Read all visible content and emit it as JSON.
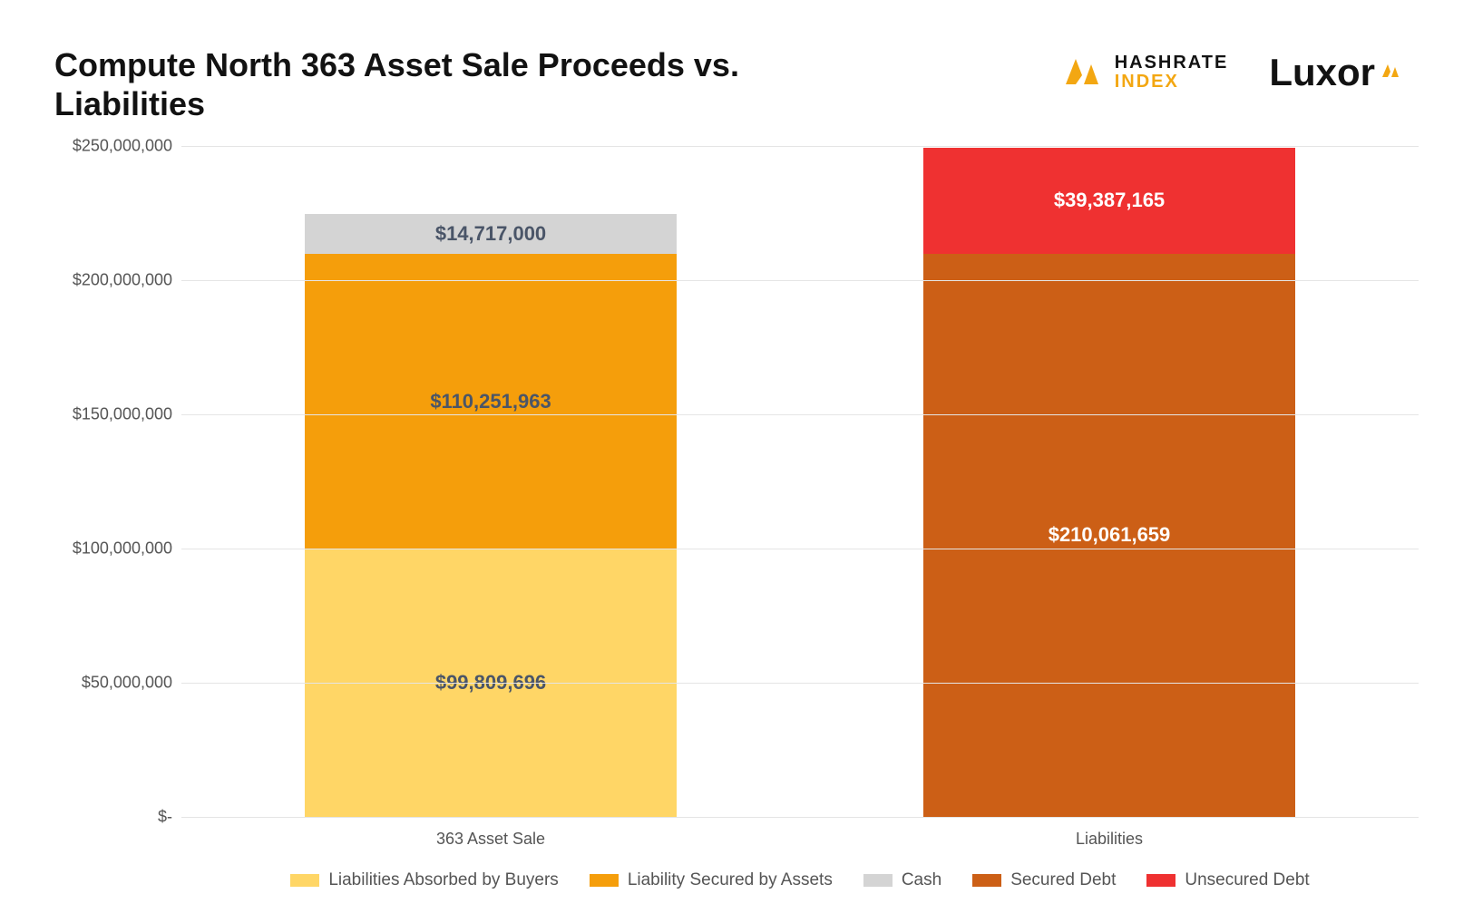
{
  "title": "Compute North 363 Asset Sale Proceeds vs. Liabilities",
  "title_fontsize": 36,
  "logos": {
    "hashrate": {
      "line1": "HASHRATE",
      "line2": "INDEX",
      "color": "#f3a712",
      "fontsize": 20,
      "fontweight": 800
    },
    "luxor": {
      "text": "Luxor",
      "color": "#121212",
      "accent": "#f3a712",
      "fontsize": 42,
      "fontweight": 700
    }
  },
  "chart": {
    "type": "stacked-bar",
    "background_color": "#ffffff",
    "grid_color": "#e5e5e5",
    "axis_font_color": "#555555",
    "axis_fontsize": 18,
    "ylim": [
      0,
      250000000
    ],
    "yticks": [
      {
        "v": 0,
        "label": "$-"
      },
      {
        "v": 50000000,
        "label": "$50,000,000"
      },
      {
        "v": 100000000,
        "label": "$100,000,000"
      },
      {
        "v": 150000000,
        "label": "$150,000,000"
      },
      {
        "v": 200000000,
        "label": "$200,000,000"
      },
      {
        "v": 250000000,
        "label": "$250,000,000"
      }
    ],
    "bar_width_pct": 60,
    "categories": [
      "363 Asset Sale",
      "Liabilities"
    ],
    "stacks": [
      [
        {
          "series": "Liabilities Absorbed by Buyers",
          "value": 99809696,
          "label": "$99,809,696",
          "label_color": "#4a5568"
        },
        {
          "series": "Liability Secured by Assets",
          "value": 110251963,
          "label": "$110,251,963",
          "label_color": "#4a5568"
        },
        {
          "series": "Cash",
          "value": 14717000,
          "label": "$14,717,000",
          "label_color": "#4a5568"
        }
      ],
      [
        {
          "series": "Secured Debt",
          "value": 210061659,
          "label": "$210,061,659",
          "label_color": "#ffffff"
        },
        {
          "series": "Unsecured Debt",
          "value": 39387165,
          "label": "$39,387,165",
          "label_color": "#ffffff"
        }
      ]
    ],
    "series_colors": {
      "Liabilities Absorbed by Buyers": "#ffd666",
      "Liability Secured by Assets": "#f59e0b",
      "Cash": "#d4d4d4",
      "Secured Debt": "#cc5f16",
      "Unsecured Debt": "#ef3131"
    },
    "value_label_fontsize": 22,
    "legend": [
      {
        "label": "Liabilities Absorbed by Buyers",
        "color": "#ffd666"
      },
      {
        "label": "Liability Secured by Assets",
        "color": "#f59e0b"
      },
      {
        "label": "Cash",
        "color": "#d4d4d4"
      },
      {
        "label": "Secured Debt",
        "color": "#cc5f16"
      },
      {
        "label": "Unsecured Debt",
        "color": "#ef3131"
      }
    ],
    "legend_fontsize": 19
  }
}
